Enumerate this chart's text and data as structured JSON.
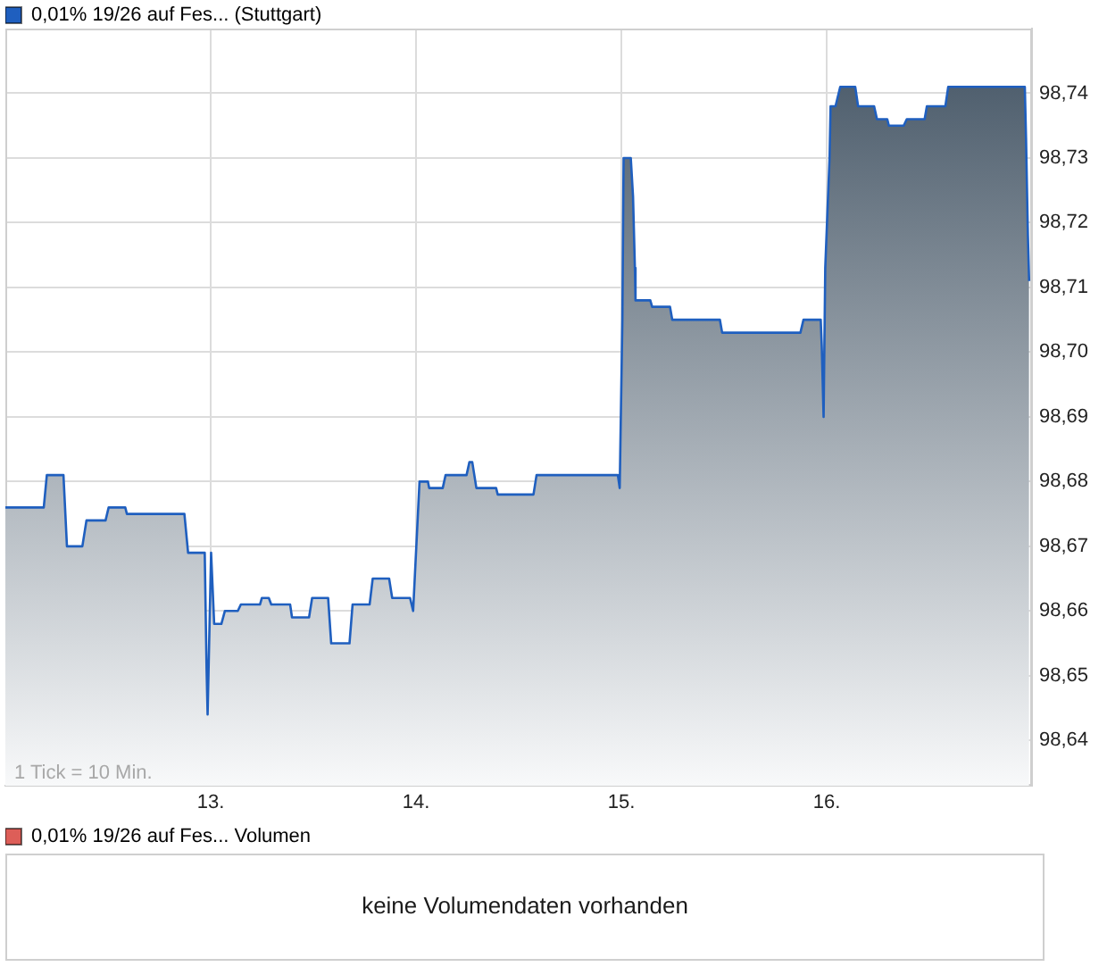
{
  "chart_data": [
    {
      "type": "area",
      "legend": "top left",
      "grid": true,
      "annotations": [
        "1 Tick = 10 Min."
      ],
      "xlim": [
        12,
        17
      ],
      "xticks": [
        {
          "value": 13,
          "label": "13."
        },
        {
          "value": 14,
          "label": "14."
        },
        {
          "value": 15,
          "label": "15."
        },
        {
          "value": 16,
          "label": "16."
        }
      ],
      "ylim": [
        98.633,
        98.75
      ],
      "yticks": [
        {
          "value": 98.64,
          "label": "98,64"
        },
        {
          "value": 98.65,
          "label": "98,65"
        },
        {
          "value": 98.66,
          "label": "98,66"
        },
        {
          "value": 98.67,
          "label": "98,67"
        },
        {
          "value": 98.68,
          "label": "98,68"
        },
        {
          "value": 98.69,
          "label": "98,69"
        },
        {
          "value": 98.7,
          "label": "98,70"
        },
        {
          "value": 98.71,
          "label": "98,71"
        },
        {
          "value": 98.72,
          "label": "98,72"
        },
        {
          "value": 98.73,
          "label": "98,73"
        },
        {
          "value": 98.74,
          "label": "98,74"
        }
      ],
      "x": [
        12.0,
        12.187,
        12.202,
        12.283,
        12.3,
        12.375,
        12.395,
        12.488,
        12.503,
        12.584,
        12.592,
        12.872,
        12.89,
        12.971,
        12.98,
        12.985,
        13.002,
        13.017,
        13.052,
        13.069,
        13.132,
        13.147,
        13.24,
        13.249,
        13.283,
        13.295,
        13.387,
        13.396,
        13.479,
        13.494,
        13.572,
        13.587,
        13.676,
        13.691,
        13.774,
        13.789,
        13.869,
        13.884,
        13.971,
        13.986,
        14.017,
        14.058,
        14.064,
        14.13,
        14.144,
        14.246,
        14.26,
        14.274,
        14.294,
        14.39,
        14.398,
        14.572,
        14.587,
        14.983,
        14.992,
        15.005,
        15.011,
        15.046,
        15.057,
        15.066,
        15.069,
        15.141,
        15.15,
        15.237,
        15.248,
        15.48,
        15.491,
        15.872,
        15.887,
        15.971,
        15.976,
        15.985,
        15.993,
        16.014,
        16.019,
        16.043,
        16.066,
        16.139,
        16.153,
        16.231,
        16.245,
        16.295,
        16.303,
        16.375,
        16.39,
        16.477,
        16.488,
        16.578,
        16.592,
        16.965,
        16.971,
        16.98,
        16.986
      ],
      "series": [
        {
          "name": "0,01% 19/26 auf Fes... (Stuttgart)",
          "color": "#1f5fbf",
          "values": [
            98.676,
            98.676,
            98.681,
            98.681,
            98.67,
            98.67,
            98.674,
            98.674,
            98.676,
            98.676,
            98.675,
            98.675,
            98.669,
            98.669,
            98.651,
            98.644,
            98.669,
            98.658,
            98.658,
            98.66,
            98.66,
            98.661,
            98.661,
            98.662,
            98.662,
            98.661,
            98.661,
            98.659,
            98.659,
            98.662,
            98.662,
            98.655,
            98.655,
            98.661,
            98.661,
            98.665,
            98.665,
            98.662,
            98.662,
            98.66,
            98.68,
            98.68,
            98.679,
            98.679,
            98.681,
            98.681,
            98.683,
            98.683,
            98.679,
            98.679,
            98.678,
            98.678,
            98.681,
            98.681,
            98.679,
            98.705,
            98.73,
            98.73,
            98.724,
            98.713,
            98.708,
            98.708,
            98.707,
            98.707,
            98.705,
            98.705,
            98.703,
            98.703,
            98.705,
            98.705,
            98.701,
            98.69,
            98.713,
            98.73,
            98.738,
            98.738,
            98.741,
            98.741,
            98.738,
            98.738,
            98.736,
            98.736,
            98.735,
            98.735,
            98.736,
            98.736,
            98.738,
            98.738,
            98.741,
            98.741,
            98.733,
            98.718,
            98.711
          ]
        }
      ]
    },
    {
      "type": "other",
      "legend": "top left",
      "series": [
        {
          "name": "0,01% 19/26 auf Fes... Volumen",
          "color": "#dd5e58"
        }
      ],
      "annotations": [
        "keine Volumendaten vorhanden"
      ]
    }
  ]
}
